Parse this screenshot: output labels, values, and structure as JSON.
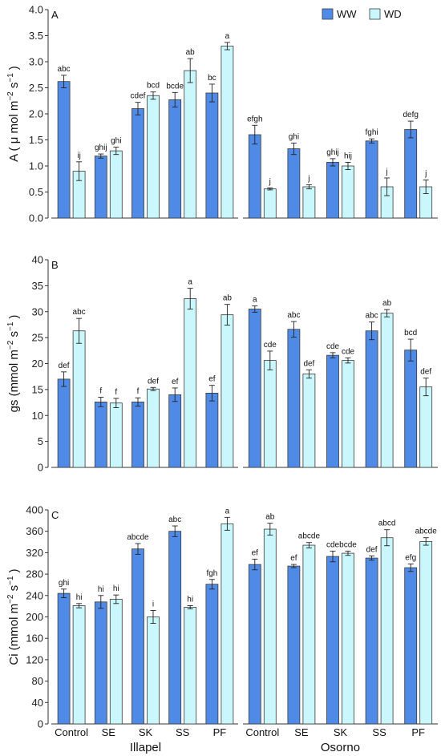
{
  "colors": {
    "WW": "#4f8ae6",
    "WD": "#c9f7fb",
    "stroke": "#3a3a3a"
  },
  "legend": {
    "items": [
      {
        "key": "WW",
        "label": "WW"
      },
      {
        "key": "WD",
        "label": "WD"
      }
    ],
    "placement": "top-right"
  },
  "x_axis": {
    "categories": [
      "Control",
      "SE",
      "SK",
      "SS",
      "PF"
    ],
    "groups": [
      "Illapel",
      "Osorno"
    ]
  },
  "chart_data": [
    {
      "type": "bar",
      "panel": "A",
      "ylabel_main": "A ( μ mol m",
      "ylabel_sup1": "−2",
      "ylabel_mid": " s",
      "ylabel_sup2": "−1",
      "ylabel_end": ")",
      "ylim": [
        0,
        4
      ],
      "yticks": [
        "0.0",
        "0.5",
        "1.0",
        "1.5",
        "2.0",
        "2.5",
        "3.0",
        "3.5",
        "4.0"
      ],
      "ytick_values": [
        0,
        0.5,
        1,
        1.5,
        2,
        2.5,
        3,
        3.5,
        4
      ],
      "groups": [
        {
          "name": "Illapel",
          "bars": [
            {
              "cat": "Control",
              "series": "WW",
              "value": 2.62,
              "err": 0.12,
              "sig": "abc"
            },
            {
              "cat": "Control",
              "series": "WD",
              "value": 0.9,
              "err": 0.18,
              "sig": "ij"
            },
            {
              "cat": "SE",
              "series": "WW",
              "value": 1.19,
              "err": 0.04,
              "sig": "ghij"
            },
            {
              "cat": "SE",
              "series": "WD",
              "value": 1.29,
              "err": 0.07,
              "sig": "ghi"
            },
            {
              "cat": "SK",
              "series": "WW",
              "value": 2.1,
              "err": 0.12,
              "sig": "cdef"
            },
            {
              "cat": "SK",
              "series": "WD",
              "value": 2.35,
              "err": 0.07,
              "sig": "bcd"
            },
            {
              "cat": "SS",
              "series": "WW",
              "value": 2.27,
              "err": 0.14,
              "sig": "bcde"
            },
            {
              "cat": "SS",
              "series": "WD",
              "value": 2.83,
              "err": 0.23,
              "sig": "ab"
            },
            {
              "cat": "PF",
              "series": "WW",
              "value": 2.4,
              "err": 0.17,
              "sig": "bc"
            },
            {
              "cat": "PF",
              "series": "WD",
              "value": 3.3,
              "err": 0.07,
              "sig": "a"
            }
          ]
        },
        {
          "name": "Osorno",
          "bars": [
            {
              "cat": "Control",
              "series": "WW",
              "value": 1.6,
              "err": 0.18,
              "sig": "efgh"
            },
            {
              "cat": "Control",
              "series": "WD",
              "value": 0.56,
              "err": 0.02,
              "sig": "j"
            },
            {
              "cat": "SE",
              "series": "WW",
              "value": 1.33,
              "err": 0.11,
              "sig": "ghi"
            },
            {
              "cat": "SE",
              "series": "WD",
              "value": 0.6,
              "err": 0.04,
              "sig": "j"
            },
            {
              "cat": "SK",
              "series": "WW",
              "value": 1.07,
              "err": 0.07,
              "sig": "ghij"
            },
            {
              "cat": "SK",
              "series": "WD",
              "value": 1.0,
              "err": 0.07,
              "sig": "hij"
            },
            {
              "cat": "SS",
              "series": "WW",
              "value": 1.48,
              "err": 0.04,
              "sig": "fghi"
            },
            {
              "cat": "SS",
              "series": "WD",
              "value": 0.6,
              "err": 0.17,
              "sig": "j"
            },
            {
              "cat": "PF",
              "series": "WW",
              "value": 1.7,
              "err": 0.16,
              "sig": "defg"
            },
            {
              "cat": "PF",
              "series": "WD",
              "value": 0.6,
              "err": 0.13,
              "sig": "j"
            }
          ]
        }
      ]
    },
    {
      "type": "bar",
      "panel": "B",
      "ylabel_main": "gs (mmol m",
      "ylabel_sup1": "−2",
      "ylabel_mid": " s",
      "ylabel_sup2": "−1",
      "ylabel_end": ")",
      "ylim": [
        0,
        40
      ],
      "yticks": [
        "0",
        "5",
        "10",
        "15",
        "20",
        "25",
        "30",
        "35",
        "40"
      ],
      "ytick_values": [
        0,
        5,
        10,
        15,
        20,
        25,
        30,
        35,
        40
      ],
      "groups": [
        {
          "name": "Illapel",
          "bars": [
            {
              "cat": "Control",
              "series": "WW",
              "value": 17.0,
              "err": 1.4,
              "sig": "def"
            },
            {
              "cat": "Control",
              "series": "WD",
              "value": 26.3,
              "err": 2.4,
              "sig": "abc"
            },
            {
              "cat": "SE",
              "series": "WW",
              "value": 12.6,
              "err": 0.9,
              "sig": "f"
            },
            {
              "cat": "SE",
              "series": "WD",
              "value": 12.4,
              "err": 0.9,
              "sig": "f"
            },
            {
              "cat": "SK",
              "series": "WW",
              "value": 12.6,
              "err": 0.8,
              "sig": "f"
            },
            {
              "cat": "SK",
              "series": "WD",
              "value": 15.1,
              "err": 0.3,
              "sig": "def"
            },
            {
              "cat": "SS",
              "series": "WW",
              "value": 14.0,
              "err": 1.3,
              "sig": "ef"
            },
            {
              "cat": "SS",
              "series": "WD",
              "value": 32.5,
              "err": 2.0,
              "sig": "a"
            },
            {
              "cat": "PF",
              "series": "WW",
              "value": 14.3,
              "err": 1.5,
              "sig": "ef"
            },
            {
              "cat": "PF",
              "series": "WD",
              "value": 29.4,
              "err": 2.0,
              "sig": "ab"
            }
          ]
        },
        {
          "name": "Osorno",
          "bars": [
            {
              "cat": "Control",
              "series": "WW",
              "value": 30.5,
              "err": 0.6,
              "sig": "a"
            },
            {
              "cat": "Control",
              "series": "WD",
              "value": 20.6,
              "err": 1.8,
              "sig": "cde"
            },
            {
              "cat": "SE",
              "series": "WW",
              "value": 26.6,
              "err": 1.5,
              "sig": "abc"
            },
            {
              "cat": "SE",
              "series": "WD",
              "value": 18.0,
              "err": 0.8,
              "sig": "def"
            },
            {
              "cat": "SK",
              "series": "WW",
              "value": 21.6,
              "err": 0.5,
              "sig": "cde"
            },
            {
              "cat": "SK",
              "series": "WD",
              "value": 20.6,
              "err": 0.5,
              "sig": "cde"
            },
            {
              "cat": "SS",
              "series": "WW",
              "value": 26.3,
              "err": 1.7,
              "sig": "abc"
            },
            {
              "cat": "SS",
              "series": "WD",
              "value": 29.7,
              "err": 0.7,
              "sig": "ab"
            },
            {
              "cat": "PF",
              "series": "WW",
              "value": 22.6,
              "err": 2.1,
              "sig": "bcd"
            },
            {
              "cat": "PF",
              "series": "WD",
              "value": 15.5,
              "err": 1.7,
              "sig": "def"
            }
          ]
        }
      ]
    },
    {
      "type": "bar",
      "panel": "C",
      "ylabel_main": "Ci (mmol m",
      "ylabel_sup1": "−2",
      "ylabel_mid": " s",
      "ylabel_sup2": "−1",
      "ylabel_end": ")",
      "ylim": [
        0,
        400
      ],
      "yticks": [
        "0",
        "40",
        "80",
        "120",
        "160",
        "200",
        "240",
        "280",
        "320",
        "360",
        "400"
      ],
      "ytick_values": [
        0,
        40,
        80,
        120,
        160,
        200,
        240,
        280,
        320,
        360,
        400
      ],
      "groups": [
        {
          "name": "Illapel",
          "bars": [
            {
              "cat": "Control",
              "series": "WW",
              "value": 244,
              "err": 8,
              "sig": "ghi"
            },
            {
              "cat": "Control",
              "series": "WD",
              "value": 221,
              "err": 4,
              "sig": "hi"
            },
            {
              "cat": "SE",
              "series": "WW",
              "value": 228,
              "err": 12,
              "sig": "hi"
            },
            {
              "cat": "SE",
              "series": "WD",
              "value": 233,
              "err": 8,
              "sig": "hi"
            },
            {
              "cat": "SK",
              "series": "WW",
              "value": 327,
              "err": 10,
              "sig": "abcde"
            },
            {
              "cat": "SK",
              "series": "WD",
              "value": 200,
              "err": 12,
              "sig": "i"
            },
            {
              "cat": "SS",
              "series": "WW",
              "value": 360,
              "err": 10,
              "sig": "abc"
            },
            {
              "cat": "SS",
              "series": "WD",
              "value": 218,
              "err": 3,
              "sig": "hi"
            },
            {
              "cat": "PF",
              "series": "WW",
              "value": 261,
              "err": 9,
              "sig": "fgh"
            },
            {
              "cat": "PF",
              "series": "WD",
              "value": 374,
              "err": 12,
              "sig": "a"
            }
          ]
        },
        {
          "name": "Osorno",
          "bars": [
            {
              "cat": "Control",
              "series": "WW",
              "value": 298,
              "err": 10,
              "sig": "ef"
            },
            {
              "cat": "Control",
              "series": "WD",
              "value": 364,
              "err": 11,
              "sig": "ab"
            },
            {
              "cat": "SE",
              "series": "WW",
              "value": 295,
              "err": 3,
              "sig": "ef"
            },
            {
              "cat": "SE",
              "series": "WD",
              "value": 334,
              "err": 5,
              "sig": "abcde"
            },
            {
              "cat": "SK",
              "series": "WW",
              "value": 313,
              "err": 10,
              "sig": "cde"
            },
            {
              "cat": "SK",
              "series": "WD",
              "value": 319,
              "err": 4,
              "sig": "bcde"
            },
            {
              "cat": "SS",
              "series": "WW",
              "value": 310,
              "err": 4,
              "sig": "def"
            },
            {
              "cat": "SS",
              "series": "WD",
              "value": 348,
              "err": 15,
              "sig": "abcd"
            },
            {
              "cat": "PF",
              "series": "WW",
              "value": 292,
              "err": 7,
              "sig": "efg"
            },
            {
              "cat": "PF",
              "series": "WD",
              "value": 341,
              "err": 7,
              "sig": "abcde"
            }
          ]
        }
      ]
    }
  ]
}
